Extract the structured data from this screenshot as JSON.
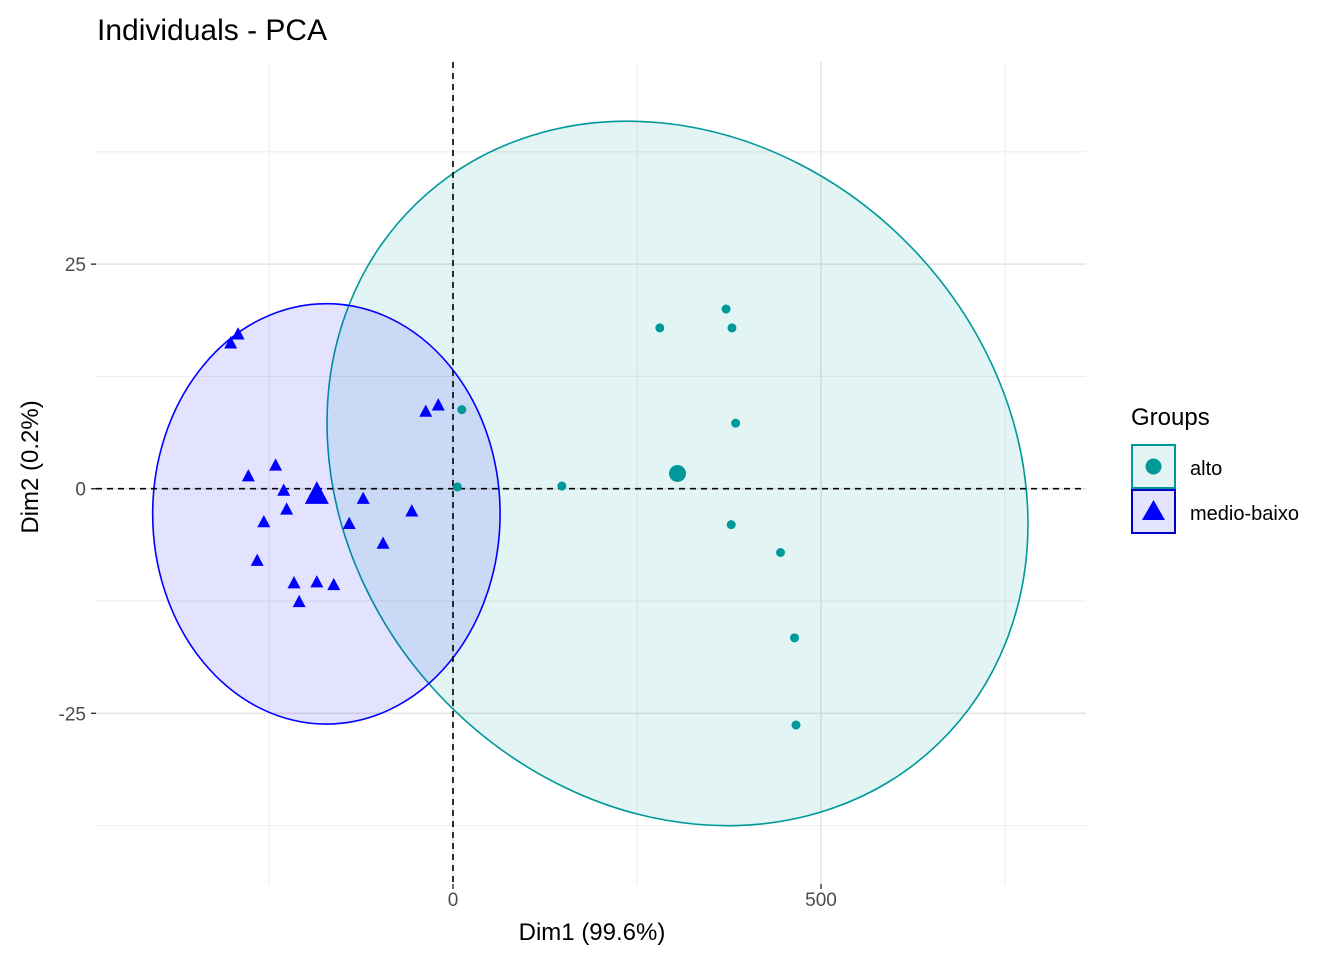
{
  "chart_data": {
    "type": "scatter",
    "title": "Individuals - PCA",
    "xlabel": "Dim1 (99.6%)",
    "ylabel": "Dim2 (0.2%)",
    "xlim": [
      -485,
      860
    ],
    "ylim": [
      -44,
      47.5
    ],
    "x_ticks": [
      {
        "value": 0,
        "label": "0"
      },
      {
        "value": 500,
        "label": "500"
      }
    ],
    "y_ticks": [
      {
        "value": 25,
        "label": "25"
      },
      {
        "value": 0,
        "label": "0"
      },
      {
        "value": -25,
        "label": "-25"
      }
    ],
    "x_minor_gridlines": [
      -250,
      250,
      750
    ],
    "y_minor_gridlines": [
      37.5,
      12.5,
      -12.5,
      -37.5
    ],
    "grid": true,
    "reference_lines": {
      "x": 0,
      "y": 0,
      "style": "dashed"
    },
    "legend": {
      "title": "Groups",
      "placement": "right",
      "entries": [
        {
          "label": "alto",
          "shape": "circle",
          "color": "#00999a"
        },
        {
          "label": "medio-baixo",
          "shape": "triangle",
          "color": "#0000ff"
        }
      ]
    },
    "series": [
      {
        "name": "alto",
        "marker": "circle",
        "color": "#00999a",
        "points": [
          {
            "x": 12,
            "y": 8.8
          },
          {
            "x": 6,
            "y": 0.2
          },
          {
            "x": 148,
            "y": 0.3
          },
          {
            "x": 281,
            "y": 17.9
          },
          {
            "x": 371,
            "y": 20
          },
          {
            "x": 379,
            "y": 17.9
          },
          {
            "x": 384,
            "y": 7.3
          },
          {
            "x": 378,
            "y": -4
          },
          {
            "x": 445,
            "y": -7.1
          },
          {
            "x": 464,
            "y": -16.6
          },
          {
            "x": 466,
            "y": -26.3
          }
        ],
        "centroid": {
          "x": 305,
          "y": 1.7
        },
        "ellipse": {
          "center_x": 305,
          "center_y": 1.7,
          "radius_x": 442,
          "radius_y": 41.8,
          "rotation_deg": -44
        }
      },
      {
        "name": "medio-baixo",
        "marker": "triangle",
        "color": "#0000ff",
        "points": [
          {
            "x": -302,
            "y": 16.2
          },
          {
            "x": -292,
            "y": 17.2
          },
          {
            "x": -278,
            "y": 1.4
          },
          {
            "x": -241,
            "y": 2.6
          },
          {
            "x": -230,
            "y": -0.2
          },
          {
            "x": -226,
            "y": -2.3
          },
          {
            "x": -257,
            "y": -3.7
          },
          {
            "x": -266,
            "y": -8
          },
          {
            "x": -216,
            "y": -10.5
          },
          {
            "x": -209,
            "y": -12.6
          },
          {
            "x": -185,
            "y": -10.4
          },
          {
            "x": -162,
            "y": -10.7
          },
          {
            "x": -141,
            "y": -3.9
          },
          {
            "x": -122,
            "y": -1.1
          },
          {
            "x": -95,
            "y": -6.1
          },
          {
            "x": -56,
            "y": -2.5
          },
          {
            "x": -37,
            "y": 8.6
          },
          {
            "x": -20,
            "y": 9.3
          }
        ],
        "centroid": {
          "x": -185,
          "y": -0.6
        },
        "ellipse": {
          "center_x": -172,
          "center_y": -2.8,
          "radius_x": 236,
          "radius_y": 23.4,
          "rotation_deg": 0
        }
      }
    ]
  }
}
